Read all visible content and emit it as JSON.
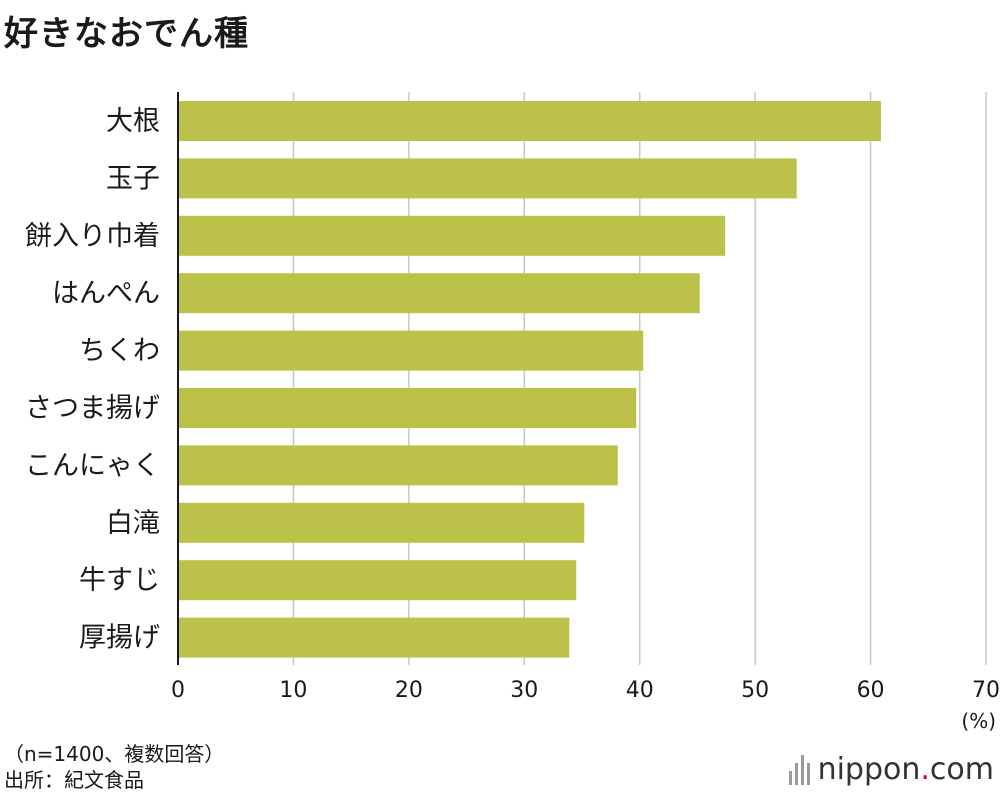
{
  "title": "好きなおでん種",
  "chart_data": {
    "type": "bar",
    "orientation": "horizontal",
    "categories": [
      "大根",
      "玉子",
      "餅入り巾着",
      "はんぺん",
      "ちくわ",
      "さつま揚げ",
      "こんにゃく",
      "白滝",
      "牛すじ",
      "厚揚げ"
    ],
    "values": [
      60.9,
      53.6,
      47.4,
      45.2,
      40.3,
      39.7,
      38.1,
      35.2,
      34.5,
      33.9
    ],
    "xlim": [
      0,
      70
    ],
    "xticks": [
      0,
      10,
      20,
      30,
      40,
      50,
      60,
      70
    ],
    "unit_label": "(%)",
    "bar_color": "#bcc14a",
    "grid": true
  },
  "notes": {
    "sample": "（n=1400、複数回答）",
    "source": "出所：紀文食品"
  },
  "brand": {
    "name_main": "nippon",
    "name_dot": ".",
    "name_tail": "com",
    "accent": "#d7003a"
  }
}
